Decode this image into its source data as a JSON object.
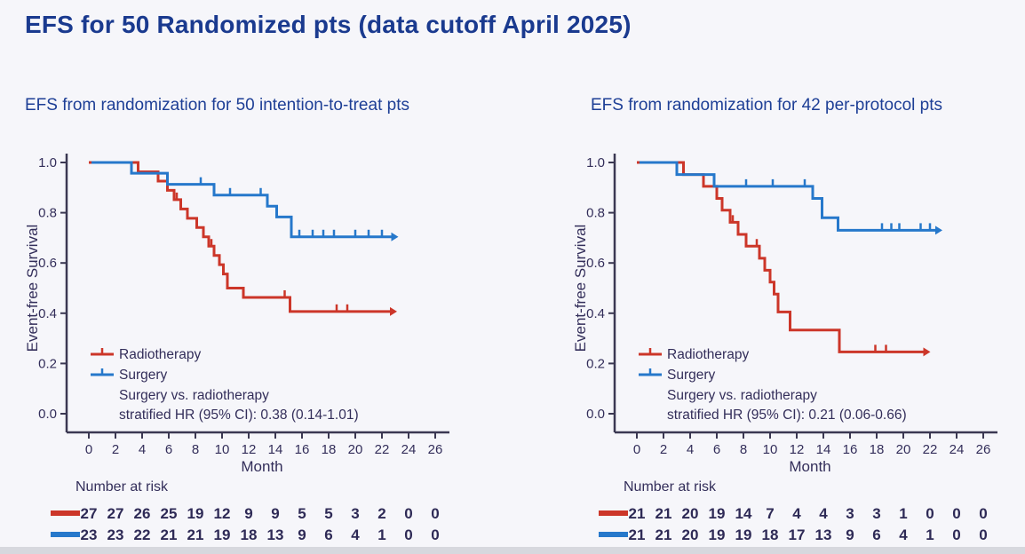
{
  "page": {
    "title_main": "EFS for 50 Randomized pts",
    "title_suffix": " (data cutoff April 2025)"
  },
  "colors": {
    "title_navy": "#1a3a8f",
    "subtitle_navy": "#1e3f96",
    "axis_ink": "#3b3852",
    "text_ink": "#332e5a",
    "radiotherapy_red": "#cc3629",
    "surgery_blue": "#2678cb"
  },
  "chart_data": [
    {
      "type": "line",
      "subtype": "kaplan-meier-step",
      "title": "EFS from randomization for 50 intention-to-treat pts",
      "xlabel": "Month",
      "ylabel": "Event-free Survival",
      "xlim": [
        0,
        26
      ],
      "ylim": [
        0.0,
        1.0
      ],
      "xticks": [
        0,
        2,
        4,
        6,
        8,
        10,
        12,
        14,
        16,
        18,
        20,
        22,
        24,
        26
      ],
      "ytick_labels": [
        "1.0",
        "0.8",
        "0.6",
        "0.4",
        "0.2",
        "0.0"
      ],
      "grid": false,
      "legend_position": "lower-left-inside",
      "annotation_lines": [
        "Surgery vs. radiotherapy",
        "stratified HR (95% CI): 0.38 (0.14-1.01)"
      ],
      "series": [
        {
          "name": "Radiotherapy",
          "color": "#cc3629",
          "start": [
            0,
            1.0
          ],
          "drops": [
            [
              3.7,
              0.963
            ],
            [
              5.2,
              0.926
            ],
            [
              5.9,
              0.889
            ],
            [
              6.4,
              0.852
            ],
            [
              6.9,
              0.815
            ],
            [
              7.4,
              0.778
            ],
            [
              8.1,
              0.741
            ],
            [
              8.6,
              0.704
            ],
            [
              9.0,
              0.667
            ],
            [
              9.4,
              0.63
            ],
            [
              9.8,
              0.593
            ],
            [
              10.1,
              0.556
            ],
            [
              10.4,
              0.5
            ],
            [
              11.6,
              0.463
            ],
            [
              15.1,
              0.407
            ]
          ],
          "end_month": 22.6,
          "censors": [
            [
              6.6,
              0.852
            ],
            [
              9.2,
              0.667
            ],
            [
              14.7,
              0.463
            ],
            [
              18.6,
              0.407
            ],
            [
              19.4,
              0.407
            ]
          ]
        },
        {
          "name": "Surgery",
          "color": "#2678cb",
          "start": [
            0.2,
            1.0
          ],
          "drops": [
            [
              3.2,
              0.957
            ],
            [
              5.9,
              0.913
            ],
            [
              9.4,
              0.87
            ],
            [
              13.4,
              0.826
            ],
            [
              14.1,
              0.783
            ],
            [
              15.2,
              0.704
            ]
          ],
          "end_month": 22.7,
          "censors": [
            [
              8.4,
              0.913
            ],
            [
              10.6,
              0.87
            ],
            [
              12.9,
              0.87
            ],
            [
              15.8,
              0.704
            ],
            [
              16.8,
              0.704
            ],
            [
              17.6,
              0.704
            ],
            [
              18.4,
              0.704
            ],
            [
              20.0,
              0.704
            ],
            [
              21.0,
              0.704
            ],
            [
              22.0,
              0.704
            ]
          ]
        }
      ],
      "number_at_risk": {
        "label": "Number at risk",
        "months": [
          0,
          2,
          4,
          6,
          8,
          10,
          12,
          14,
          16,
          18,
          20,
          22,
          24,
          26
        ],
        "rows": [
          {
            "name": "Radiotherapy",
            "color": "#cc3629",
            "values": [
              27,
              27,
              26,
              25,
              19,
              12,
              9,
              9,
              5,
              5,
              3,
              2,
              0,
              0
            ]
          },
          {
            "name": "Surgery",
            "color": "#2678cb",
            "values": [
              23,
              23,
              22,
              21,
              21,
              19,
              18,
              13,
              9,
              6,
              4,
              1,
              0,
              0
            ]
          }
        ]
      }
    },
    {
      "type": "line",
      "subtype": "kaplan-meier-step",
      "title": "EFS from randomization for 42 per-protocol pts",
      "xlabel": "Month",
      "ylabel": "Event-free Survival",
      "xlim": [
        0,
        26
      ],
      "ylim": [
        0.0,
        1.0
      ],
      "xticks": [
        0,
        2,
        4,
        6,
        8,
        10,
        12,
        14,
        16,
        18,
        20,
        22,
        24,
        26
      ],
      "ytick_labels": [
        "1.0",
        "0.8",
        "0.6",
        "0.4",
        "0.2",
        "0.0"
      ],
      "grid": false,
      "legend_position": "lower-left-inside",
      "annotation_lines": [
        "Surgery vs. radiotherapy",
        "stratified HR (95% CI): 0.21 (0.06-0.66)"
      ],
      "series": [
        {
          "name": "Radiotherapy",
          "color": "#cc3629",
          "start": [
            0,
            1.0
          ],
          "drops": [
            [
              3.5,
              0.952
            ],
            [
              5.0,
              0.905
            ],
            [
              6.0,
              0.857
            ],
            [
              6.4,
              0.81
            ],
            [
              7.0,
              0.762
            ],
            [
              7.6,
              0.714
            ],
            [
              8.2,
              0.667
            ],
            [
              9.2,
              0.619
            ],
            [
              9.6,
              0.571
            ],
            [
              10.0,
              0.524
            ],
            [
              10.3,
              0.476
            ],
            [
              10.6,
              0.405
            ],
            [
              11.5,
              0.333
            ],
            [
              15.2,
              0.246
            ]
          ],
          "end_month": 21.5,
          "censors": [
            [
              7.2,
              0.762
            ],
            [
              9.0,
              0.667
            ],
            [
              17.9,
              0.246
            ],
            [
              18.7,
              0.246
            ]
          ]
        },
        {
          "name": "Surgery",
          "color": "#2678cb",
          "start": [
            0.2,
            1.0
          ],
          "drops": [
            [
              3.0,
              0.952
            ],
            [
              5.8,
              0.905
            ],
            [
              13.2,
              0.857
            ],
            [
              13.9,
              0.78
            ],
            [
              15.1,
              0.73
            ]
          ],
          "end_month": 22.4,
          "censors": [
            [
              8.2,
              0.905
            ],
            [
              10.2,
              0.905
            ],
            [
              12.6,
              0.905
            ],
            [
              18.4,
              0.73
            ],
            [
              19.1,
              0.73
            ],
            [
              19.7,
              0.73
            ],
            [
              21.3,
              0.73
            ],
            [
              22.0,
              0.73
            ]
          ]
        }
      ],
      "number_at_risk": {
        "label": "Number at risk",
        "months": [
          0,
          2,
          4,
          6,
          8,
          10,
          12,
          14,
          16,
          18,
          20,
          22,
          24,
          26
        ],
        "rows": [
          {
            "name": "Radiotherapy",
            "color": "#cc3629",
            "values": [
              21,
              21,
              20,
              19,
              14,
              7,
              4,
              4,
              3,
              3,
              1,
              0,
              0,
              0
            ]
          },
          {
            "name": "Surgery",
            "color": "#2678cb",
            "values": [
              21,
              21,
              20,
              19,
              19,
              18,
              17,
              13,
              9,
              6,
              4,
              1,
              0,
              0
            ]
          }
        ]
      }
    }
  ]
}
